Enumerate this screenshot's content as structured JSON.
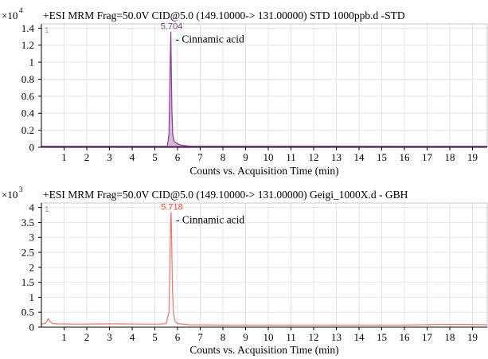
{
  "chart_data": [
    {
      "type": "line",
      "title": "+ESI MRM Frag=50.0V CID@5.0 (149.10000-> 131.00000) STD 1000ppb.d -STD",
      "scale_label": "×10",
      "scale_exponent": "4",
      "panel_number": "1",
      "xlabel": "Counts vs. Acquisition Time (min)",
      "ylabel": "",
      "xlim": [
        0,
        19.65
      ],
      "ylim": [
        0,
        1.45
      ],
      "x_ticks": [
        1,
        2,
        3,
        4,
        5,
        6,
        7,
        8,
        9,
        10,
        11,
        12,
        13,
        14,
        15,
        16,
        17,
        18,
        19
      ],
      "y_ticks": [
        0,
        0.2,
        0.4,
        0.6,
        0.8,
        1,
        1.2,
        1.4
      ],
      "y_tick_labels": [
        "0",
        "0.2",
        "0.4",
        "0.6",
        "0.8",
        "1",
        "1.2",
        "1.4"
      ],
      "grid": true,
      "baseline": 0.01,
      "series": [
        {
          "color": "#8b3a96",
          "x": [
            0,
            5.55,
            5.62,
            5.66,
            5.69,
            5.704,
            5.72,
            5.75,
            5.79,
            5.85,
            5.95,
            6.1,
            6.3,
            6.6,
            19.65
          ],
          "y": [
            0.01,
            0.01,
            0.15,
            0.7,
            1.2,
            1.36,
            1.05,
            0.45,
            0.15,
            0.07,
            0.05,
            0.03,
            0.02,
            0.012,
            0.01
          ]
        }
      ],
      "peak": {
        "x": 5.704,
        "y": 1.36,
        "label": "5.704",
        "compound": "- Cinnamic acid"
      }
    },
    {
      "type": "line",
      "title": "+ESI MRM Frag=50.0V CID@5.0 (149.10000-> 131.00000) Geigi_1000X.d - GBH",
      "scale_label": "×10",
      "scale_exponent": "3",
      "panel_number": "1",
      "xlabel": "Counts vs. Acquisition Time (min)",
      "ylabel": "",
      "xlim": [
        0,
        19.65
      ],
      "ylim": [
        0,
        4.15
      ],
      "x_ticks": [
        1,
        2,
        3,
        4,
        5,
        6,
        7,
        8,
        9,
        10,
        11,
        12,
        13,
        14,
        15,
        16,
        17,
        18,
        19
      ],
      "y_ticks": [
        0,
        0.5,
        1,
        1.5,
        2,
        2.5,
        3,
        3.5,
        4
      ],
      "y_tick_labels": [
        "0",
        "0.5",
        "1",
        "1.5",
        "2",
        "2.5",
        "3",
        "3.5",
        "4"
      ],
      "grid": true,
      "series": [
        {
          "color": "#f07272",
          "x": [
            0,
            0.2,
            0.3,
            0.4,
            0.5,
            0.7,
            1.5,
            3,
            4.5,
            5.3,
            5.5,
            5.62,
            5.67,
            5.7,
            5.718,
            5.74,
            5.78,
            5.83,
            5.9,
            6.0,
            6.5,
            8,
            10,
            12,
            14,
            16,
            17.5,
            18.5,
            19.65
          ],
          "y": [
            0.1,
            0.13,
            0.28,
            0.18,
            0.12,
            0.11,
            0.1,
            0.11,
            0.1,
            0.1,
            0.12,
            0.5,
            2.2,
            3.6,
            3.85,
            3.0,
            1.2,
            0.4,
            0.18,
            0.12,
            0.08,
            0.07,
            0.07,
            0.07,
            0.07,
            0.07,
            0.09,
            0.09,
            0.08
          ]
        }
      ],
      "peak": {
        "x": 5.718,
        "y": 3.85,
        "label": "5.718",
        "compound": "- Cinnamic acid"
      }
    }
  ]
}
